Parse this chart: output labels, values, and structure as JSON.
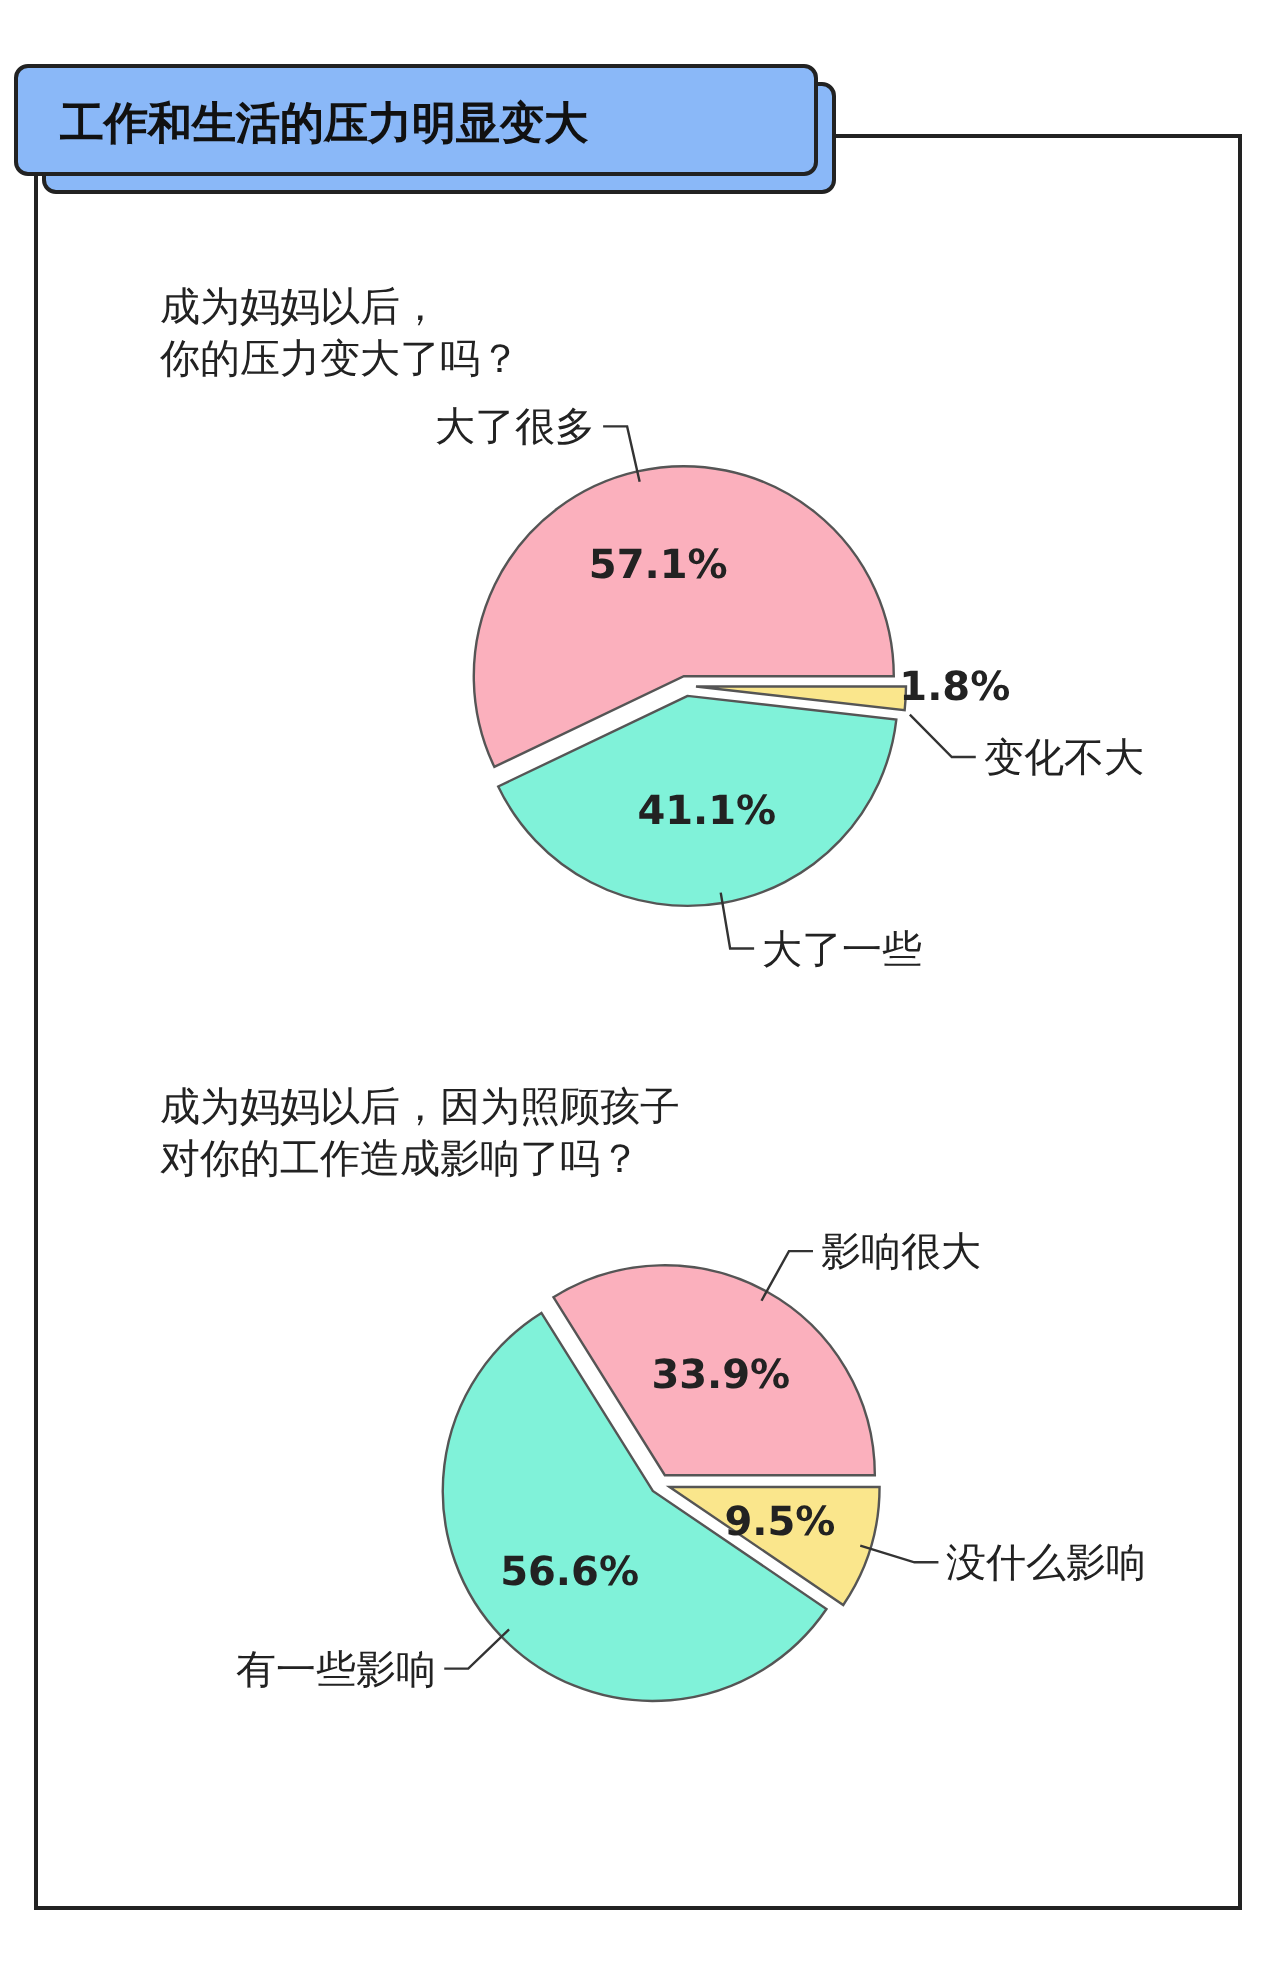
{
  "chart_data": [
    {
      "type": "pie",
      "title": "工作和生活的压力明显变大",
      "subtitle": "成为妈妈以后，你的压力变大了吗？",
      "categories": [
        "大了很多",
        "大了一些",
        "变化不大"
      ],
      "values": [
        57.1,
        41.1,
        1.8
      ],
      "colors": [
        "#fbb0bd",
        "#80f2d9",
        "#fae68c"
      ],
      "value_labels": [
        "57.1%",
        "41.1%",
        "1.8%"
      ]
    },
    {
      "type": "pie",
      "subtitle": "成为妈妈以后，因为照顾孩子对你的工作造成影响了吗？",
      "categories": [
        "影响很大",
        "有一些影响",
        "没什么影响"
      ],
      "values": [
        33.9,
        56.6,
        9.5
      ],
      "colors": [
        "#fbb0bd",
        "#80f2d9",
        "#fae68c"
      ],
      "value_labels": [
        "33.9%",
        "56.6%",
        "9.5%"
      ]
    }
  ]
}
